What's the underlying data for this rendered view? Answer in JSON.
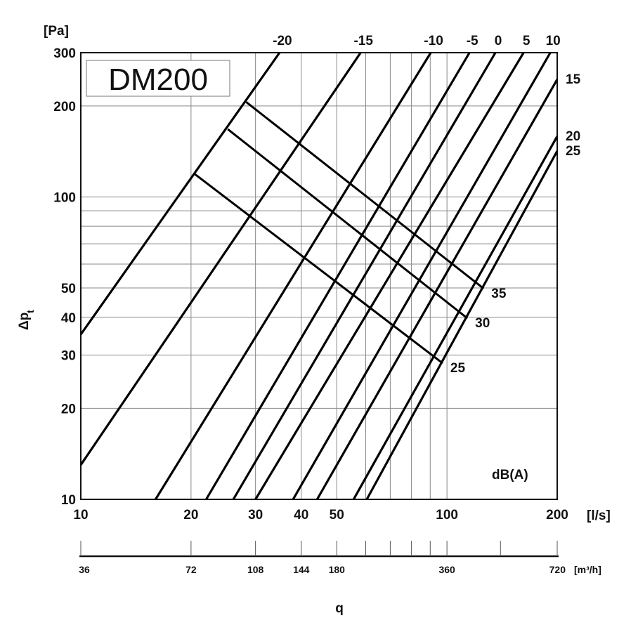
{
  "chart_data": {
    "type": "line",
    "title": "DM200",
    "xlabel": "q",
    "x_unit": "[l/s]",
    "ylabel": "Δp",
    "ylabel_subscript": "t",
    "y_unit": "[Pa]",
    "x_scale": "log",
    "y_scale": "log",
    "xlim": [
      10,
      200
    ],
    "ylim": [
      10,
      300
    ],
    "grid": true,
    "x_ticks": [
      10,
      20,
      30,
      40,
      50,
      100,
      200
    ],
    "x_grid": [
      20,
      30,
      40,
      50,
      60,
      70,
      80,
      90,
      100
    ],
    "y_ticks": [
      10,
      20,
      30,
      40,
      50,
      100,
      200,
      300
    ],
    "y_grid": [
      20,
      30,
      40,
      50,
      60,
      70,
      80,
      90,
      100,
      200
    ],
    "series_unit_label": "dB(A)",
    "series": [
      {
        "name": "-20",
        "points": [
          [
            10,
            35.1
          ],
          [
            34.9,
            300
          ]
        ]
      },
      {
        "name": "-15",
        "points": [
          [
            10,
            13.0
          ],
          [
            58.1,
            300
          ]
        ]
      },
      {
        "name": "-10",
        "points": [
          [
            16.0,
            10
          ],
          [
            90.3,
            300
          ]
        ]
      },
      {
        "name": "-5",
        "points": [
          [
            22.0,
            10
          ],
          [
            115.2,
            300
          ]
        ]
      },
      {
        "name": "0",
        "points": [
          [
            26.1,
            10
          ],
          [
            135.6,
            300
          ]
        ]
      },
      {
        "name": "5",
        "points": [
          [
            30.0,
            10
          ],
          [
            161.9,
            300
          ]
        ]
      },
      {
        "name": "10",
        "points": [
          [
            38.0,
            10
          ],
          [
            191.5,
            300
          ]
        ]
      },
      {
        "name": "15",
        "points": [
          [
            44.2,
            10
          ],
          [
            200,
            244.7
          ]
        ]
      },
      {
        "name": "20",
        "points": [
          [
            55.6,
            10
          ],
          [
            200,
            158.7
          ]
        ]
      },
      {
        "name": "25",
        "points": [
          [
            60.4,
            10
          ],
          [
            200,
            141.9
          ]
        ]
      }
    ],
    "cross_lines": [
      {
        "name": "35",
        "points": [
          [
            28.3,
            206
          ],
          [
            125.9,
            49.8
          ]
        ]
      },
      {
        "name": "30",
        "points": [
          [
            25.2,
            167.5
          ],
          [
            113.7,
            39.7
          ]
        ]
      },
      {
        "name": "25",
        "points": [
          [
            20.5,
            118.9
          ],
          [
            97.3,
            28.2
          ]
        ]
      }
    ],
    "secondary_x_axis": {
      "unit": "[m³/h]",
      "ticks": [
        36,
        72,
        108,
        144,
        180,
        360,
        720
      ],
      "minor_ticks": [
        216,
        252,
        288,
        324,
        504
      ]
    }
  }
}
